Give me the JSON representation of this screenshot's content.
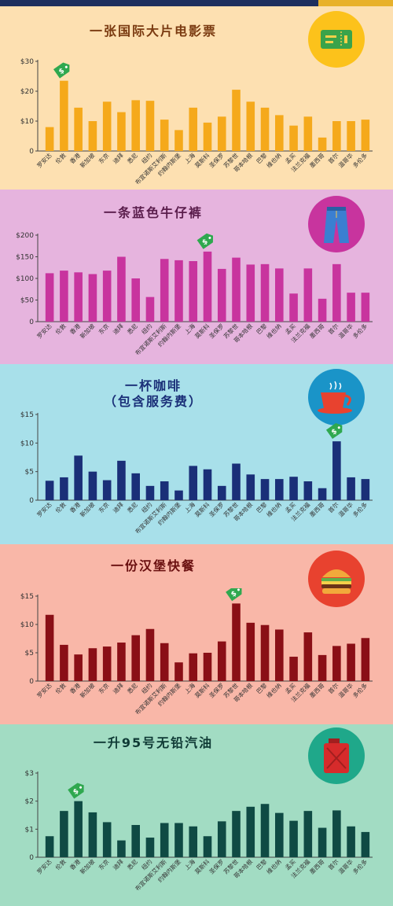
{
  "categories": [
    "罗安达",
    "伦敦",
    "香港",
    "新加坡",
    "东京",
    "迪拜",
    "悉尼",
    "纽约",
    "布宜诺斯艾利斯",
    "约翰内斯堡",
    "上海",
    "莫斯科",
    "圣保罗",
    "苏黎世",
    "哥本哈根",
    "巴黎",
    "维也纳",
    "孟买",
    "法兰克福",
    "墨西哥",
    "首尔",
    "温哥华",
    "多伦多"
  ],
  "colors": {
    "panel_bgs": [
      "#fde0b1",
      "#e6b4de",
      "#a8e0ea",
      "#f9b7a8",
      "#a2dcc3"
    ],
    "bar_colors": [
      "#f5a91b",
      "#c8349e",
      "#1a2f78",
      "#8a0f16",
      "#0f4a44"
    ],
    "tag_color": "#2fa84f"
  },
  "icons": [
    "ticket-icon",
    "jeans-icon",
    "coffee-cup-icon",
    "burger-icon",
    "fuel-can-icon"
  ],
  "panels": [
    {
      "title": "一张国际大片电影票",
      "subtitle": ""
    },
    {
      "title": "一条蓝色牛仔裤",
      "subtitle": ""
    },
    {
      "title": "一杯咖啡",
      "subtitle": "（包含服务费）"
    },
    {
      "title": "一份汉堡快餐",
      "subtitle": ""
    },
    {
      "title": "一升95号无铅汽油",
      "subtitle": ""
    }
  ],
  "chart_data": [
    {
      "type": "bar",
      "title": "一张国际大片电影票",
      "categories_ref": "categories",
      "ylim": [
        0,
        30
      ],
      "yticks": [
        0,
        10,
        20,
        30
      ],
      "ytick_labels": [
        "0",
        "$10",
        "$20",
        "$30"
      ],
      "grid": false,
      "highlight": "伦敦",
      "values": [
        8,
        23.5,
        14.5,
        10,
        16.5,
        13,
        17,
        16.8,
        10.5,
        7,
        14.5,
        9.5,
        11.5,
        20.5,
        16.5,
        14.5,
        12,
        8.5,
        11.5,
        4.5,
        10,
        10,
        10.5
      ]
    },
    {
      "type": "bar",
      "title": "一条蓝色牛仔裤",
      "categories_ref": "categories",
      "ylim": [
        0,
        200
      ],
      "yticks": [
        0,
        50,
        100,
        150,
        200
      ],
      "ytick_labels": [
        "0",
        "$50",
        "$100",
        "$150",
        "$200"
      ],
      "grid": false,
      "highlight": "莫斯科",
      "values": [
        112,
        118,
        114,
        110,
        118,
        150,
        100,
        57,
        145,
        142,
        140,
        162,
        122,
        148,
        132,
        133,
        123,
        65,
        123,
        53,
        133,
        67,
        67
      ]
    },
    {
      "type": "bar",
      "title": "一杯咖啡",
      "subtitle": "（包含服务费）",
      "categories_ref": "categories",
      "ylim": [
        0,
        15
      ],
      "yticks": [
        0,
        5,
        10,
        15
      ],
      "ytick_labels": [
        "0",
        "$5",
        "$10",
        "$15"
      ],
      "grid": false,
      "highlight": "首尔",
      "values": [
        3.4,
        4.0,
        7.8,
        5.0,
        3.5,
        6.9,
        4.7,
        2.5,
        3.3,
        1.7,
        6.0,
        5.4,
        2.5,
        6.4,
        4.5,
        3.7,
        3.7,
        4.1,
        3.3,
        2.1,
        10.3,
        4.0,
        3.7
      ]
    },
    {
      "type": "bar",
      "title": "一份汉堡快餐",
      "categories_ref": "categories",
      "ylim": [
        0,
        15
      ],
      "yticks": [
        0,
        5,
        10,
        15
      ],
      "ytick_labels": [
        "0",
        "$5",
        "$10",
        "$15"
      ],
      "grid": false,
      "highlight": "苏黎世",
      "values": [
        11.7,
        6.4,
        4.7,
        5.8,
        6.1,
        6.8,
        8.1,
        9.2,
        6.7,
        3.3,
        4.9,
        5.0,
        7.0,
        13.7,
        10.3,
        9.9,
        9.1,
        4.3,
        8.6,
        4.6,
        6.2,
        6.6,
        7.6
      ]
    },
    {
      "type": "bar",
      "title": "一升95号无铅汽油",
      "categories_ref": "categories",
      "ylim": [
        0,
        3
      ],
      "yticks": [
        0,
        1,
        2,
        3
      ],
      "ytick_labels": [
        "0",
        "$1",
        "$2",
        "$3"
      ],
      "grid": false,
      "highlight": "香港",
      "values": [
        0.75,
        1.65,
        2.0,
        1.6,
        1.25,
        0.6,
        1.15,
        0.7,
        1.22,
        1.22,
        1.1,
        0.75,
        1.28,
        1.65,
        1.8,
        1.9,
        1.58,
        1.3,
        1.65,
        1.05,
        1.67,
        1.1,
        0.9
      ]
    }
  ]
}
